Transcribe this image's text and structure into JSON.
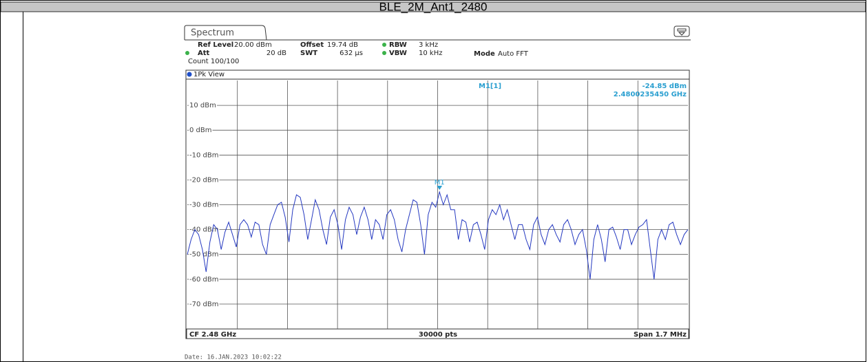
{
  "table": {
    "title": "BLE_2M_Ant1_2480"
  },
  "instrument": {
    "tab": "Spectrum",
    "settings": [
      {
        "label": "Ref Level",
        "value": "20.00 dBm"
      },
      {
        "label": "Offset",
        "value": "19.74 dB"
      },
      {
        "label": "RBW",
        "value": "3 kHz"
      },
      {
        "label": "Att",
        "value": "20 dB"
      },
      {
        "label": "SWT",
        "value": "632 µs"
      },
      {
        "label": "VBW",
        "value": "10 kHz"
      },
      {
        "label": "Mode",
        "value": "Auto FFT"
      }
    ],
    "count": "Count 100/100",
    "view": "1Pk View",
    "footer": {
      "left": "CF 2.48 GHz",
      "center": "30000 pts",
      "right": "Span 1.7 MHz"
    },
    "date": "Date: 16.JAN.2023  10:02:22"
  },
  "chart_data": {
    "type": "line",
    "color": "#2438c0",
    "ylim": [
      -80,
      20
    ],
    "yticks": [
      {
        "value": 10,
        "label": "10 dBm"
      },
      {
        "value": 0,
        "label": "0 dBm"
      },
      {
        "value": -10,
        "label": "-10 dBm"
      },
      {
        "value": -20,
        "label": "-20 dBm"
      },
      {
        "value": -30,
        "label": "-30 dBm"
      },
      {
        "value": -40,
        "label": "-40 dBm"
      },
      {
        "value": -50,
        "label": "-50 dBm"
      },
      {
        "value": -60,
        "label": "-60 dBm"
      },
      {
        "value": -70,
        "label": "-70 dBm"
      }
    ],
    "grid": true,
    "values": [
      -50,
      -44,
      -40,
      -42,
      -48,
      -57,
      -45,
      -38,
      -40,
      -48,
      -41,
      -37,
      -42,
      -47,
      -38,
      -36,
      -38,
      -43,
      -37,
      -38,
      -46,
      -50,
      -38,
      -34,
      -30,
      -29,
      -35,
      -45,
      -32,
      -26,
      -27,
      -34,
      -44,
      -36,
      -28,
      -32,
      -40,
      -46,
      -35,
      -32,
      -38,
      -48,
      -36,
      -31,
      -34,
      -42,
      -35,
      -31,
      -36,
      -44,
      -36,
      -38,
      -44,
      -34,
      -32,
      -36,
      -44,
      -49,
      -40,
      -34,
      -28,
      -29,
      -38,
      -50,
      -34,
      -29,
      -31,
      -24.85,
      -30,
      -26,
      -32,
      -32,
      -44,
      -36,
      -37,
      -45,
      -38,
      -37,
      -42,
      -48,
      -36,
      -32,
      -34,
      -30,
      -36,
      -32,
      -38,
      -44,
      -38,
      -38,
      -44,
      -48,
      -38,
      -35,
      -42,
      -46,
      -40,
      -38,
      -42,
      -45,
      -38,
      -36,
      -40,
      -46,
      -42,
      -40,
      -48,
      -60,
      -44,
      -38,
      -44,
      -53,
      -40,
      -39,
      -43,
      -48,
      -40,
      -40,
      -46,
      -42,
      -39,
      -38,
      -36,
      -48,
      -60,
      -44,
      -40,
      -44,
      -38,
      -37,
      -42,
      -46,
      -42,
      -40
    ],
    "marker": {
      "name": "M1",
      "readout": "M1[1]",
      "value": -24.85,
      "value_label": "-24.85 dBm",
      "frequency_label": "2.4800235450 GHz"
    }
  }
}
